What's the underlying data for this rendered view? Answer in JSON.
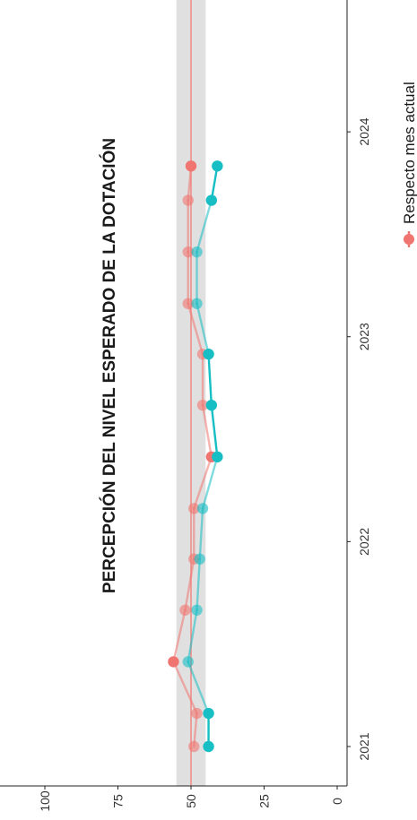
{
  "chart_data": {
    "type": "line",
    "title": "PERCEPCIÓN DEL NIVEL ESPERADO DE LA DOTACIÓN",
    "xlabel": "",
    "ylabel": "",
    "ylim": [
      0,
      100
    ],
    "yticks": [
      0,
      25,
      50,
      75,
      100
    ],
    "xticks": [
      "2021",
      "2022",
      "2023",
      "2024"
    ],
    "reference_band": [
      45,
      55
    ],
    "reference_line": 50,
    "grid": false,
    "legend_position": "bottom",
    "series": [
      {
        "name": "Respecto mes actual",
        "color": "#f07470",
        "points": [
          {
            "x": "2021-01-01",
            "y": 49,
            "faded": true
          },
          {
            "x": "2021-03-01",
            "y": 48,
            "faded": true
          },
          {
            "x": "2021-06-01",
            "y": 56,
            "faded": false
          },
          {
            "x": "2021-09-01",
            "y": 52,
            "faded": true
          },
          {
            "x": "2021-12-01",
            "y": 49,
            "faded": true
          },
          {
            "x": "2022-03-01",
            "y": 49,
            "faded": true
          },
          {
            "x": "2022-06-01",
            "y": 43,
            "faded": false
          },
          {
            "x": "2022-09-01",
            "y": 46,
            "faded": true
          },
          {
            "x": "2022-12-01",
            "y": 46,
            "faded": true
          },
          {
            "x": "2023-03-01",
            "y": 51,
            "faded": true
          },
          {
            "x": "2023-06-01",
            "y": 51,
            "faded": true
          },
          {
            "x": "2023-09-01",
            "y": 51,
            "faded": true
          },
          {
            "x": "2023-11-01",
            "y": 50,
            "faded": false
          }
        ]
      },
      {
        "name": "",
        "color": "#17bec4",
        "points": [
          {
            "x": "2021-01-01",
            "y": 44,
            "faded": false
          },
          {
            "x": "2021-03-01",
            "y": 44,
            "faded": false
          },
          {
            "x": "2021-06-01",
            "y": 51,
            "faded": true
          },
          {
            "x": "2021-09-01",
            "y": 48,
            "faded": true
          },
          {
            "x": "2021-12-01",
            "y": 47,
            "faded": true
          },
          {
            "x": "2022-03-01",
            "y": 46,
            "faded": true
          },
          {
            "x": "2022-06-01",
            "y": 41,
            "faded": false
          },
          {
            "x": "2022-09-01",
            "y": 43,
            "faded": false
          },
          {
            "x": "2022-12-01",
            "y": 44,
            "faded": false
          },
          {
            "x": "2023-03-01",
            "y": 48,
            "faded": true
          },
          {
            "x": "2023-06-01",
            "y": 48,
            "faded": true
          },
          {
            "x": "2023-09-01",
            "y": 43,
            "faded": false
          },
          {
            "x": "2023-11-01",
            "y": 41,
            "faded": false
          }
        ]
      }
    ]
  }
}
